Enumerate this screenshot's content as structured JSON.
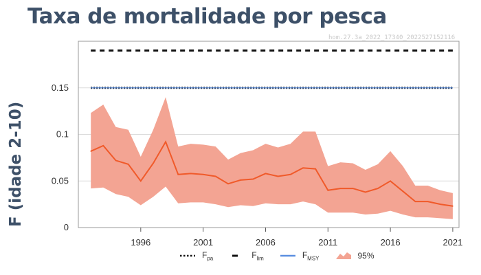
{
  "header": {
    "title": "Taxa de mortalidade por pesca",
    "watermark": "hom.27.3a_2022_17340_2022527152116"
  },
  "chart_data": {
    "type": "line",
    "title": "",
    "xlabel": "",
    "ylabel": "F (idade 2-10)",
    "xlim": [
      1991,
      2021.5
    ],
    "ylim": [
      0,
      0.2
    ],
    "xticks": [
      1996,
      2001,
      2006,
      2011,
      2016,
      2021
    ],
    "yticks": [
      0,
      0.05,
      0.1,
      0.15
    ],
    "ytick_labels": [
      "0",
      "0.05",
      "0.1",
      "0.15"
    ],
    "grid": "horizontal",
    "legend_position": "bottom",
    "reference_lines": [
      {
        "name": "F",
        "subscript": "pa",
        "y": 0.15,
        "style": "dotted",
        "color": "#111111"
      },
      {
        "name": "F",
        "subscript": "lim",
        "y": 0.19,
        "style": "dashed",
        "color": "#111111"
      },
      {
        "name": "F",
        "subscript": "MSY",
        "y": 0.15,
        "style": "solid",
        "color": "#5b8fe0"
      }
    ],
    "x": [
      1992,
      1993,
      1994,
      1995,
      1996,
      1997,
      1998,
      1999,
      2000,
      2001,
      2002,
      2003,
      2004,
      2005,
      2006,
      2007,
      2008,
      2009,
      2010,
      2011,
      2012,
      2013,
      2014,
      2015,
      2016,
      2017,
      2018,
      2019,
      2020,
      2021
    ],
    "series": [
      {
        "name": "",
        "color": "#f05a2a",
        "values": [
          0.082,
          0.088,
          0.072,
          0.068,
          0.05,
          0.069,
          0.092,
          0.057,
          0.058,
          0.057,
          0.055,
          0.047,
          0.051,
          0.052,
          0.058,
          0.055,
          0.057,
          0.064,
          0.063,
          0.04,
          0.042,
          0.042,
          0.038,
          0.042,
          0.05,
          0.039,
          0.028,
          0.028,
          0.025,
          0.023
        ]
      }
    ],
    "band": {
      "name": "95%",
      "color": "#f3a493",
      "upper": [
        0.123,
        0.132,
        0.108,
        0.105,
        0.076,
        0.105,
        0.14,
        0.087,
        0.09,
        0.089,
        0.087,
        0.073,
        0.08,
        0.083,
        0.09,
        0.086,
        0.09,
        0.103,
        0.103,
        0.066,
        0.07,
        0.069,
        0.062,
        0.068,
        0.082,
        0.066,
        0.045,
        0.045,
        0.04,
        0.037
      ],
      "lower": [
        0.042,
        0.043,
        0.036,
        0.033,
        0.024,
        0.033,
        0.044,
        0.026,
        0.027,
        0.027,
        0.025,
        0.022,
        0.024,
        0.023,
        0.026,
        0.025,
        0.025,
        0.028,
        0.025,
        0.016,
        0.016,
        0.016,
        0.014,
        0.015,
        0.018,
        0.014,
        0.011,
        0.011,
        0.01,
        0.009
      ]
    }
  },
  "legend": {
    "items": [
      {
        "label": "F",
        "sub": "pa"
      },
      {
        "label": "F",
        "sub": "lim"
      },
      {
        "label": "F",
        "sub": "MSY"
      },
      {
        "label": "95%",
        "sub": ""
      }
    ]
  }
}
